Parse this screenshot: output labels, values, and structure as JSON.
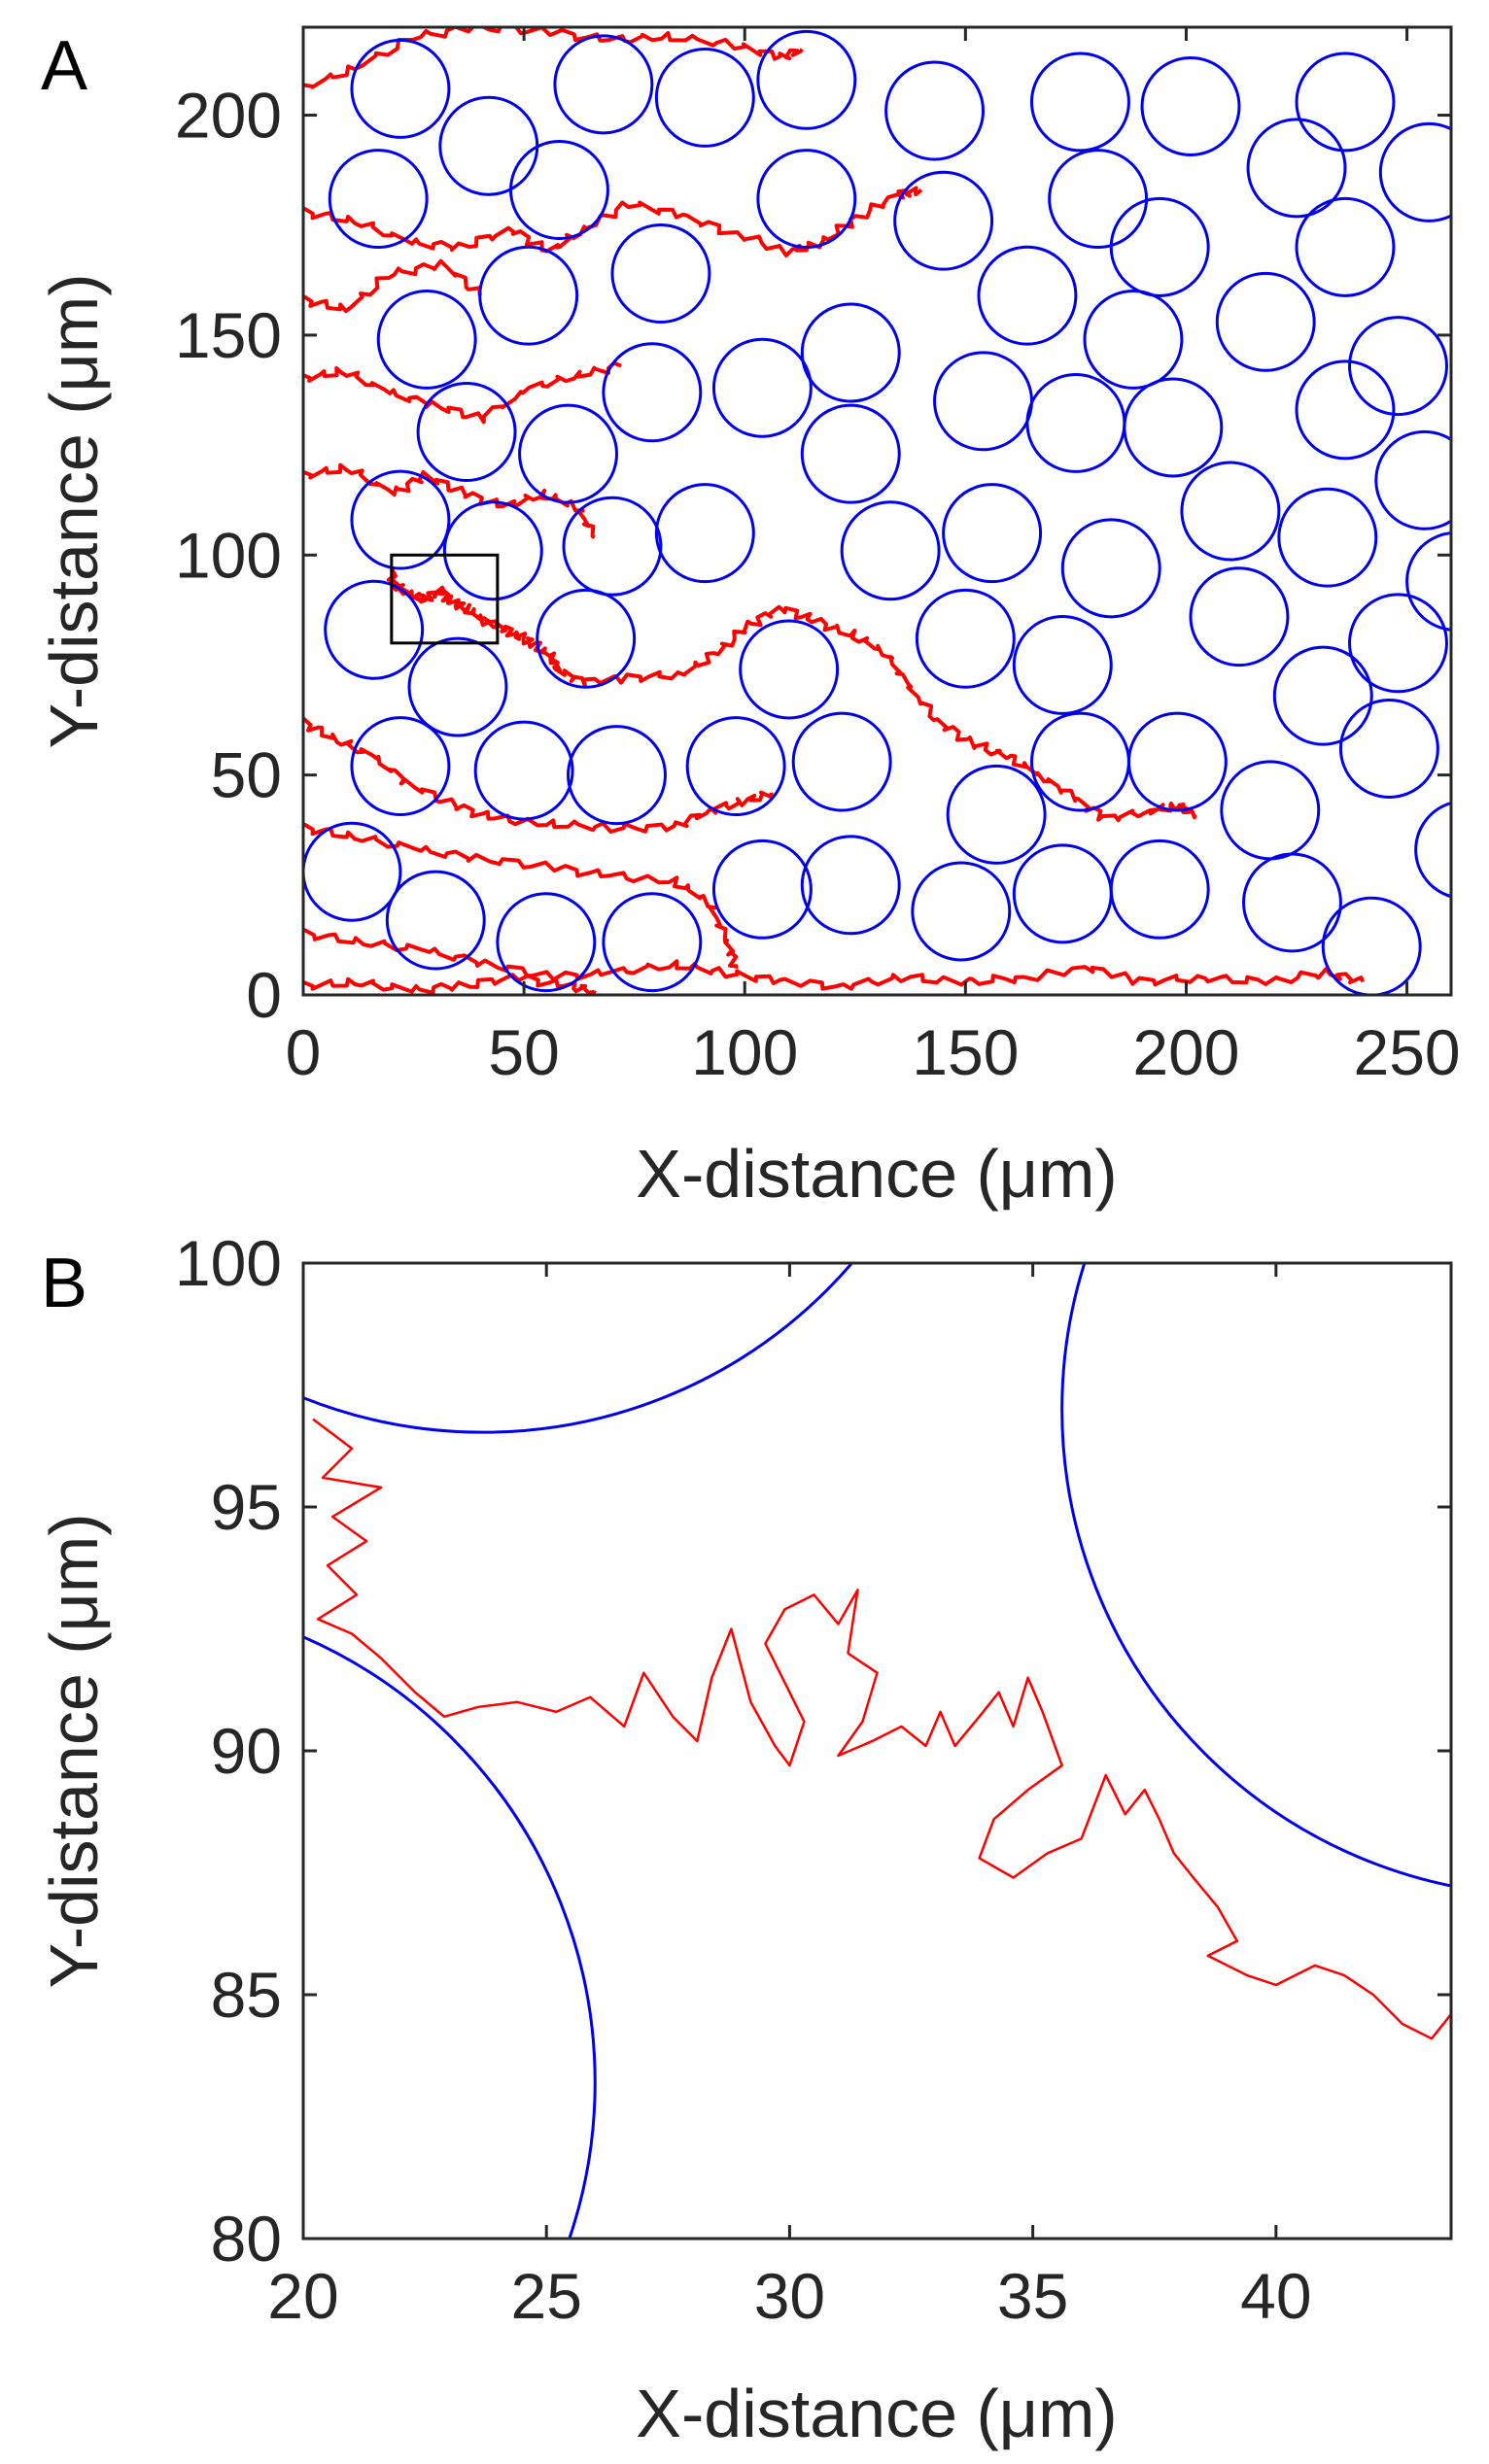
{
  "colors": {
    "obstacle": "#0000ee",
    "trajectory": "#ff0000",
    "axis": "#262626",
    "inset_box": "#000000"
  },
  "chart_data": [
    {
      "panel_label": "A",
      "type": "scatter",
      "xlabel": "X-distance (μm)",
      "ylabel": "Y-distance (μm)",
      "xlim": [
        0,
        260
      ],
      "ylim": [
        0,
        220
      ],
      "xticks": [
        0,
        50,
        100,
        150,
        200,
        250
      ],
      "yticks": [
        0,
        50,
        100,
        150,
        200
      ],
      "grid": false,
      "obstacle_radius": 11,
      "obstacles": [
        [
          22,
          206
        ],
        [
          42,
          193
        ],
        [
          17,
          181
        ],
        [
          58,
          183
        ],
        [
          68,
          207
        ],
        [
          91,
          204
        ],
        [
          114,
          208
        ],
        [
          143,
          201
        ],
        [
          176,
          203
        ],
        [
          180,
          181
        ],
        [
          201,
          202
        ],
        [
          236,
          203
        ],
        [
          225,
          188
        ],
        [
          255,
          187
        ],
        [
          145,
          176
        ],
        [
          114,
          181
        ],
        [
          81,
          164
        ],
        [
          51,
          159
        ],
        [
          194,
          170
        ],
        [
          236,
          170
        ],
        [
          28,
          149
        ],
        [
          79,
          137
        ],
        [
          104,
          138
        ],
        [
          124,
          146
        ],
        [
          164,
          159
        ],
        [
          218,
          153
        ],
        [
          188,
          149
        ],
        [
          236,
          133
        ],
        [
          248,
          143
        ],
        [
          37,
          128
        ],
        [
          60,
          123
        ],
        [
          124,
          123
        ],
        [
          154,
          135
        ],
        [
          175,
          130
        ],
        [
          197,
          129
        ],
        [
          22,
          108
        ],
        [
          43,
          101
        ],
        [
          70,
          102
        ],
        [
          91,
          105
        ],
        [
          133,
          101
        ],
        [
          156,
          105
        ],
        [
          183,
          97
        ],
        [
          210,
          110
        ],
        [
          232,
          104
        ],
        [
          254,
          117
        ],
        [
          16,
          83
        ],
        [
          64,
          81
        ],
        [
          110,
          74
        ],
        [
          150,
          81
        ],
        [
          172,
          75
        ],
        [
          212,
          86
        ],
        [
          248,
          80
        ],
        [
          261,
          94
        ],
        [
          35,
          70
        ],
        [
          22,
          52
        ],
        [
          50,
          51
        ],
        [
          71,
          50
        ],
        [
          98,
          52
        ],
        [
          122,
          53
        ],
        [
          157,
          41
        ],
        [
          176,
          53
        ],
        [
          198,
          53
        ],
        [
          219,
          42
        ],
        [
          246,
          56
        ],
        [
          231,
          68
        ],
        [
          11,
          28
        ],
        [
          30,
          17
        ],
        [
          55,
          12
        ],
        [
          79,
          12
        ],
        [
          104,
          24
        ],
        [
          124,
          25
        ],
        [
          149,
          19
        ],
        [
          172,
          23
        ],
        [
          194,
          24
        ],
        [
          224,
          21
        ],
        [
          242,
          11
        ],
        [
          263,
          33
        ]
      ],
      "trajectories": [
        [
          [
            0,
            206
          ],
          [
            12,
            211
          ],
          [
            26,
            218
          ],
          [
            40,
            220
          ],
          [
            55,
            219
          ],
          [
            70,
            217
          ],
          [
            82,
            218
          ],
          [
            98,
            216
          ],
          [
            108,
            213
          ],
          [
            113,
            215
          ]
        ],
        [
          [
            0,
            178
          ],
          [
            12,
            176
          ],
          [
            24,
            171
          ],
          [
            36,
            170
          ],
          [
            47,
            174
          ],
          [
            56,
            169
          ],
          [
            63,
            174
          ],
          [
            74,
            180
          ],
          [
            86,
            177
          ],
          [
            98,
            173
          ],
          [
            110,
            169
          ],
          [
            117,
            171
          ],
          [
            126,
            177
          ],
          [
            135,
            182
          ],
          [
            140,
            183
          ]
        ],
        [
          [
            0,
            158
          ],
          [
            10,
            156
          ],
          [
            20,
            164
          ],
          [
            32,
            166
          ],
          [
            40,
            159
          ]
        ],
        [
          [
            0,
            140
          ],
          [
            9,
            142
          ],
          [
            19,
            137
          ],
          [
            30,
            134
          ],
          [
            40,
            131
          ],
          [
            52,
            138
          ],
          [
            62,
            141
          ],
          [
            72,
            143
          ]
        ],
        [
          [
            0,
            118
          ],
          [
            10,
            120
          ],
          [
            20,
            114
          ],
          [
            28,
            118
          ],
          [
            36,
            114
          ],
          [
            46,
            111
          ],
          [
            54,
            114
          ],
          [
            62,
            111
          ],
          [
            66,
            104
          ]
        ],
        [
          [
            20,
            96
          ],
          [
            21,
            93
          ],
          [
            24,
            91
          ],
          [
            28,
            90
          ],
          [
            31,
            92
          ],
          [
            34,
            89
          ],
          [
            37,
            88
          ],
          [
            41,
            85
          ],
          [
            44,
            84
          ],
          [
            48,
            82
          ],
          [
            52,
            80
          ],
          [
            56,
            77
          ],
          [
            58,
            74
          ],
          [
            63,
            71
          ],
          [
            74,
            72
          ],
          [
            86,
            73
          ],
          [
            94,
            78
          ],
          [
            101,
            84
          ],
          [
            108,
            88
          ],
          [
            116,
            85
          ],
          [
            124,
            82
          ],
          [
            132,
            78
          ],
          [
            137,
            70
          ],
          [
            144,
            62
          ],
          [
            152,
            57
          ],
          [
            160,
            54
          ],
          [
            167,
            50
          ],
          [
            174,
            45
          ],
          [
            182,
            40
          ],
          [
            192,
            42
          ],
          [
            198,
            43
          ],
          [
            202,
            41
          ]
        ],
        [
          [
            0,
            62
          ],
          [
            8,
            58
          ],
          [
            16,
            54
          ],
          [
            24,
            48
          ],
          [
            34,
            43
          ],
          [
            44,
            40
          ],
          [
            56,
            39
          ],
          [
            70,
            38
          ],
          [
            84,
            38
          ],
          [
            92,
            42
          ],
          [
            100,
            44
          ],
          [
            106,
            46
          ]
        ],
        [
          [
            0,
            38
          ],
          [
            12,
            36
          ],
          [
            26,
            33
          ],
          [
            40,
            31
          ],
          [
            56,
            29
          ],
          [
            70,
            27
          ],
          [
            84,
            26
          ],
          [
            92,
            21
          ],
          [
            96,
            12
          ],
          [
            98,
            6
          ]
        ],
        [
          [
            0,
            14
          ],
          [
            14,
            12
          ],
          [
            28,
            10
          ],
          [
            42,
            7
          ],
          [
            56,
            4
          ],
          [
            70,
            5
          ],
          [
            84,
            7
          ],
          [
            96,
            5
          ],
          [
            108,
            3
          ],
          [
            122,
            2
          ],
          [
            136,
            4
          ],
          [
            150,
            3
          ],
          [
            164,
            4
          ],
          [
            178,
            6
          ],
          [
            190,
            3
          ],
          [
            204,
            4
          ],
          [
            218,
            3
          ],
          [
            232,
            5
          ],
          [
            240,
            3
          ]
        ],
        [
          [
            0,
            2
          ],
          [
            12,
            3
          ],
          [
            24,
            1
          ],
          [
            36,
            2
          ],
          [
            48,
            4
          ],
          [
            60,
            2
          ],
          [
            66,
            1
          ]
        ]
      ],
      "inset_box": {
        "x": [
          20,
          44
        ],
        "y": [
          80,
          100
        ]
      }
    },
    {
      "panel_label": "B",
      "type": "line",
      "xlabel": "X-distance (μm)",
      "ylabel": "Y-distance (μm)",
      "xlim": [
        20,
        43.6
      ],
      "ylim": [
        80,
        100
      ],
      "xticks": [
        20,
        25,
        30,
        35,
        40
      ],
      "yticks": [
        80,
        85,
        90,
        95,
        100
      ],
      "grid": false,
      "obstacle_radius": 10,
      "obstacles": [
        [
          23.7,
          106.5
        ],
        [
          16,
          83.2
        ],
        [
          45.6,
          97
        ]
      ],
      "trajectory": [
        [
          20.2,
          96.8
        ],
        [
          21.0,
          96.2
        ],
        [
          20.4,
          95.6
        ],
        [
          21.6,
          95.4
        ],
        [
          20.6,
          94.8
        ],
        [
          21.3,
          94.3
        ],
        [
          20.5,
          93.8
        ],
        [
          21.1,
          93.2
        ],
        [
          20.3,
          92.7
        ],
        [
          21.0,
          92.4
        ],
        [
          21.6,
          91.9
        ],
        [
          22.3,
          91.2
        ],
        [
          22.9,
          90.7
        ],
        [
          23.6,
          90.9
        ],
        [
          24.4,
          91.0
        ],
        [
          25.2,
          90.8
        ],
        [
          25.9,
          91.1
        ],
        [
          26.6,
          90.5
        ],
        [
          27.0,
          91.6
        ],
        [
          27.6,
          90.7
        ],
        [
          28.1,
          90.2
        ],
        [
          28.4,
          91.5
        ],
        [
          28.8,
          92.5
        ],
        [
          29.2,
          91.0
        ],
        [
          29.7,
          90.1
        ],
        [
          30.0,
          89.7
        ],
        [
          30.3,
          90.6
        ],
        [
          29.9,
          91.4
        ],
        [
          29.5,
          92.2
        ],
        [
          29.9,
          92.9
        ],
        [
          30.5,
          93.2
        ],
        [
          31.0,
          92.6
        ],
        [
          31.4,
          93.3
        ],
        [
          31.2,
          92.0
        ],
        [
          31.8,
          91.6
        ],
        [
          31.5,
          90.6
        ],
        [
          31.0,
          89.9
        ],
        [
          31.7,
          90.2
        ],
        [
          32.3,
          90.5
        ],
        [
          32.8,
          90.1
        ],
        [
          33.1,
          90.8
        ],
        [
          33.4,
          90.1
        ],
        [
          33.9,
          90.7
        ],
        [
          34.3,
          91.2
        ],
        [
          34.6,
          90.5
        ],
        [
          34.9,
          91.5
        ],
        [
          35.2,
          90.8
        ],
        [
          35.6,
          89.7
        ],
        [
          34.9,
          89.2
        ],
        [
          34.2,
          88.6
        ],
        [
          33.9,
          87.8
        ],
        [
          34.6,
          87.4
        ],
        [
          35.3,
          87.9
        ],
        [
          36.0,
          88.2
        ],
        [
          36.5,
          89.5
        ],
        [
          36.9,
          88.7
        ],
        [
          37.3,
          89.2
        ],
        [
          37.6,
          88.6
        ],
        [
          37.9,
          87.9
        ],
        [
          38.3,
          87.4
        ],
        [
          38.8,
          86.8
        ],
        [
          39.2,
          86.1
        ],
        [
          38.6,
          85.8
        ],
        [
          39.4,
          85.4
        ],
        [
          40.0,
          85.2
        ],
        [
          40.8,
          85.6
        ],
        [
          41.4,
          85.4
        ],
        [
          42.0,
          85.0
        ],
        [
          42.6,
          84.4
        ],
        [
          43.2,
          84.1
        ],
        [
          43.6,
          84.6
        ]
      ]
    }
  ]
}
